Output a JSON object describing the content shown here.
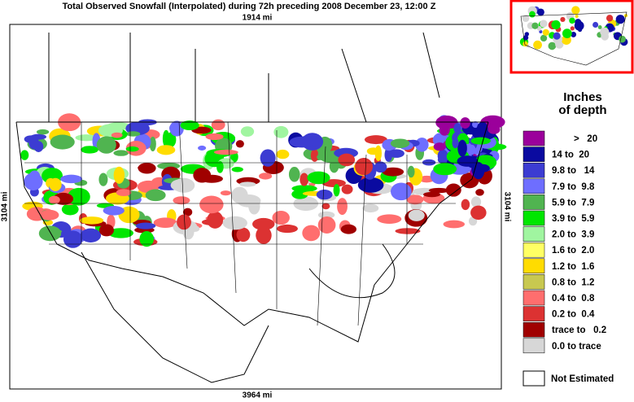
{
  "title": "Total Observed Snowfall (Interpolated) during 72h preceding 2008 December 23, 12:00 Z",
  "map": {
    "top_label": "1914 mi",
    "bottom_label": "3964 mi",
    "left_label": "3104 mi",
    "right_label": "3104 mi"
  },
  "legend": {
    "title": [
      "Inches",
      "of depth"
    ],
    "items": [
      {
        "label": ">   20",
        "color": "#9b009b"
      },
      {
        "label": "14 to  20",
        "color": "#0a0aa0"
      },
      {
        "label": "9.8 to   14",
        "color": "#3c3cd2"
      },
      {
        "label": "7.9 to  9.8",
        "color": "#6e6eff"
      },
      {
        "label": "5.9 to  7.9",
        "color": "#50b450"
      },
      {
        "label": "3.9 to  5.9",
        "color": "#00e600"
      },
      {
        "label": "2.0 to  3.9",
        "color": "#a0f5a0"
      },
      {
        "label": "1.6 to  2.0",
        "color": "#ffff64"
      },
      {
        "label": "1.2 to  1.6",
        "color": "#ffdc00"
      },
      {
        "label": "0.8 to  1.2",
        "color": "#c8c850"
      },
      {
        "label": "0.4 to  0.8",
        "color": "#ff6e6e"
      },
      {
        "label": "0.2 to  0.4",
        "color": "#dc3232"
      },
      {
        "label": "trace to   0.2",
        "color": "#a00000"
      },
      {
        "label": "0.0 to trace",
        "color": "#d7d7d7"
      }
    ],
    "not_estimated": "Not Estimated"
  }
}
